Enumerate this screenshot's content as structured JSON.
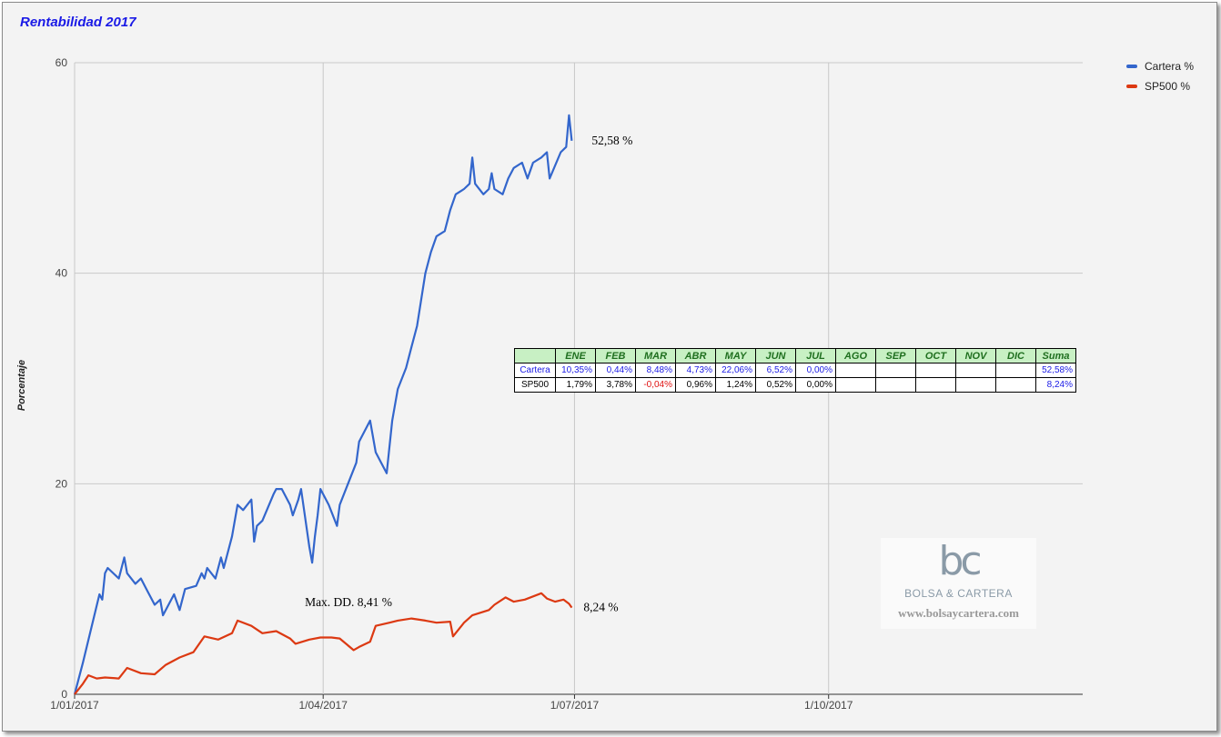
{
  "chart_data": {
    "type": "line",
    "title": "Rentabilidad 2017",
    "ylabel": "Porcentaje",
    "xlabel": "",
    "ylim": [
      0,
      60
    ],
    "yticks": [
      0,
      20,
      40,
      60
    ],
    "xlim": [
      "2017-01-01",
      "2017-12-31"
    ],
    "xticks": [
      {
        "date": "2017-01-01",
        "label": "1/01/2017"
      },
      {
        "date": "2017-04-01",
        "label": "1/04/2017"
      },
      {
        "date": "2017-07-01",
        "label": "1/07/2017"
      },
      {
        "date": "2017-10-01",
        "label": "1/10/2017"
      }
    ],
    "grid": true,
    "legend_position": "top-right",
    "series": [
      {
        "name": "Cartera %",
        "color": "#3366cc",
        "x": [
          "2017-01-01",
          "2017-01-04",
          "2017-01-10",
          "2017-01-11",
          "2017-01-12",
          "2017-01-13",
          "2017-01-17",
          "2017-01-19",
          "2017-01-20",
          "2017-01-23",
          "2017-01-25",
          "2017-01-27",
          "2017-01-30",
          "2017-02-01",
          "2017-02-02",
          "2017-02-06",
          "2017-02-08",
          "2017-02-10",
          "2017-02-14",
          "2017-02-16",
          "2017-02-17",
          "2017-02-18",
          "2017-02-21",
          "2017-02-23",
          "2017-02-24",
          "2017-02-27",
          "2017-03-01",
          "2017-03-03",
          "2017-03-06",
          "2017-03-07",
          "2017-03-08",
          "2017-03-10",
          "2017-03-14",
          "2017-03-15",
          "2017-03-17",
          "2017-03-20",
          "2017-03-21",
          "2017-03-23",
          "2017-03-24",
          "2017-03-27",
          "2017-03-28",
          "2017-03-29",
          "2017-03-30",
          "2017-03-31",
          "2017-04-03",
          "2017-04-06",
          "2017-04-07",
          "2017-04-10",
          "2017-04-13",
          "2017-04-14",
          "2017-04-18",
          "2017-04-20",
          "2017-04-21",
          "2017-04-24",
          "2017-04-26",
          "2017-04-28",
          "2017-05-01",
          "2017-05-03",
          "2017-05-05",
          "2017-05-08",
          "2017-05-10",
          "2017-05-12",
          "2017-05-15",
          "2017-05-16",
          "2017-05-17",
          "2017-05-19",
          "2017-05-22",
          "2017-05-24",
          "2017-05-25",
          "2017-05-26",
          "2017-05-29",
          "2017-05-31",
          "2017-06-01",
          "2017-06-02",
          "2017-06-05",
          "2017-06-07",
          "2017-06-09",
          "2017-06-12",
          "2017-06-14",
          "2017-06-16",
          "2017-06-19",
          "2017-06-21",
          "2017-06-22",
          "2017-06-26",
          "2017-06-28",
          "2017-06-29",
          "2017-06-30"
        ],
        "values": [
          0.0,
          3.0,
          9.5,
          9.0,
          11.5,
          12.0,
          11.0,
          13.0,
          11.5,
          10.5,
          11.0,
          10.0,
          8.5,
          9.0,
          7.5,
          9.5,
          8.0,
          10.0,
          10.3,
          11.5,
          11.0,
          12.0,
          11.0,
          13.0,
          12.0,
          15.0,
          18.0,
          17.5,
          18.5,
          14.5,
          16.0,
          16.5,
          19.0,
          19.5,
          19.5,
          18.0,
          17.0,
          18.5,
          19.5,
          14.0,
          12.5,
          15.0,
          17.0,
          19.5,
          18.0,
          16.0,
          18.0,
          20.0,
          22.0,
          24.0,
          26.0,
          23.0,
          22.5,
          21.0,
          26.0,
          29.0,
          31.0,
          33.0,
          35.0,
          40.0,
          42.0,
          43.5,
          44.0,
          45.0,
          46.0,
          47.5,
          48.0,
          48.5,
          51.0,
          48.5,
          47.5,
          48.0,
          49.5,
          48.0,
          47.5,
          49.0,
          50.0,
          50.5,
          49.0,
          50.5,
          51.0,
          51.5,
          49.0,
          51.5,
          52.0,
          55.0,
          52.58
        ]
      },
      {
        "name": "SP500 %",
        "color": "#dc3912",
        "x": [
          "2017-01-01",
          "2017-01-04",
          "2017-01-06",
          "2017-01-09",
          "2017-01-12",
          "2017-01-17",
          "2017-01-20",
          "2017-01-25",
          "2017-01-30",
          "2017-02-03",
          "2017-02-08",
          "2017-02-13",
          "2017-02-17",
          "2017-02-22",
          "2017-02-27",
          "2017-03-01",
          "2017-03-06",
          "2017-03-10",
          "2017-03-15",
          "2017-03-20",
          "2017-03-22",
          "2017-03-27",
          "2017-03-31",
          "2017-04-04",
          "2017-04-07",
          "2017-04-12",
          "2017-04-14",
          "2017-04-18",
          "2017-04-20",
          "2017-04-25",
          "2017-04-28",
          "2017-05-03",
          "2017-05-08",
          "2017-05-12",
          "2017-05-17",
          "2017-05-18",
          "2017-05-22",
          "2017-05-25",
          "2017-05-31",
          "2017-06-02",
          "2017-06-06",
          "2017-06-09",
          "2017-06-13",
          "2017-06-19",
          "2017-06-21",
          "2017-06-24",
          "2017-06-27",
          "2017-06-29",
          "2017-06-30"
        ],
        "values": [
          0.0,
          1.0,
          1.8,
          1.5,
          1.6,
          1.5,
          2.5,
          2.0,
          1.9,
          2.8,
          3.5,
          4.0,
          5.5,
          5.2,
          5.8,
          7.0,
          6.5,
          5.8,
          6.0,
          5.3,
          4.8,
          5.2,
          5.4,
          5.4,
          5.3,
          4.2,
          4.5,
          5.0,
          6.5,
          6.8,
          7.0,
          7.2,
          7.0,
          6.8,
          6.9,
          5.5,
          6.8,
          7.5,
          8.0,
          8.5,
          9.2,
          8.8,
          9.0,
          9.6,
          9.1,
          8.8,
          9.0,
          8.6,
          8.24
        ]
      }
    ],
    "annotations": [
      {
        "text": "52,58 %",
        "series": "Cartera %",
        "at": "end"
      },
      {
        "text": "8,24 %",
        "series": "SP500 %",
        "at": "end"
      },
      {
        "text": "Max. DD. 8,41 %",
        "series": "Cartera %",
        "at": "drawdown"
      }
    ],
    "table": {
      "headers": [
        "ENE",
        "FEB",
        "MAR",
        "ABR",
        "MAY",
        "JUN",
        "JUL",
        "AGO",
        "SEP",
        "OCT",
        "NOV",
        "DIC",
        "Suma"
      ],
      "rows": [
        {
          "label": "Cartera",
          "color": "#1a1ae6",
          "cells": [
            "10,35%",
            "0,44%",
            "8,48%",
            "4,73%",
            "22,06%",
            "6,52%",
            "0,00%",
            "",
            "",
            "",
            "",
            "",
            "52,58%"
          ]
        },
        {
          "label": "SP500",
          "color": "#000000",
          "cells": [
            "1,79%",
            "3,78%",
            "-0,04%",
            "0,96%",
            "1,24%",
            "0,52%",
            "0,00%",
            "",
            "",
            "",
            "",
            "",
            "8,24%"
          ]
        }
      ]
    }
  },
  "watermark": {
    "logo": "bc",
    "name": "BOLSA & CARTERA",
    "url": "www.bolsaycartera.com"
  }
}
